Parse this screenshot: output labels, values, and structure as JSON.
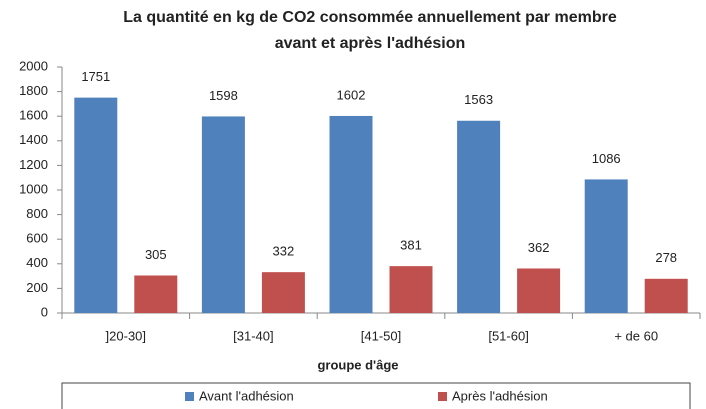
{
  "chart_data": {
    "type": "bar",
    "title": [
      "La quantité en kg de CO2 consommée annuellement par membre",
      "avant et après l'adhésion"
    ],
    "x_label": "groupe d'âge",
    "categories": [
      "]20-30]",
      "[31-40]",
      "[41-50]",
      "[51-60]",
      "+ de 60"
    ],
    "series": [
      {
        "name": "Avant l'adhésion",
        "color": "#4f81bd",
        "values": [
          1751,
          1598,
          1602,
          1563,
          1086
        ]
      },
      {
        "name": "Après l'adhésion",
        "color": "#c0504d",
        "values": [
          305,
          332,
          381,
          362,
          278
        ]
      }
    ],
    "ylim": [
      0,
      2000
    ],
    "yticks": [
      0,
      200,
      400,
      600,
      800,
      1000,
      1200,
      1400,
      1600,
      1800,
      2000
    ],
    "grid": false,
    "legend": "bottom",
    "data_labels": true
  }
}
